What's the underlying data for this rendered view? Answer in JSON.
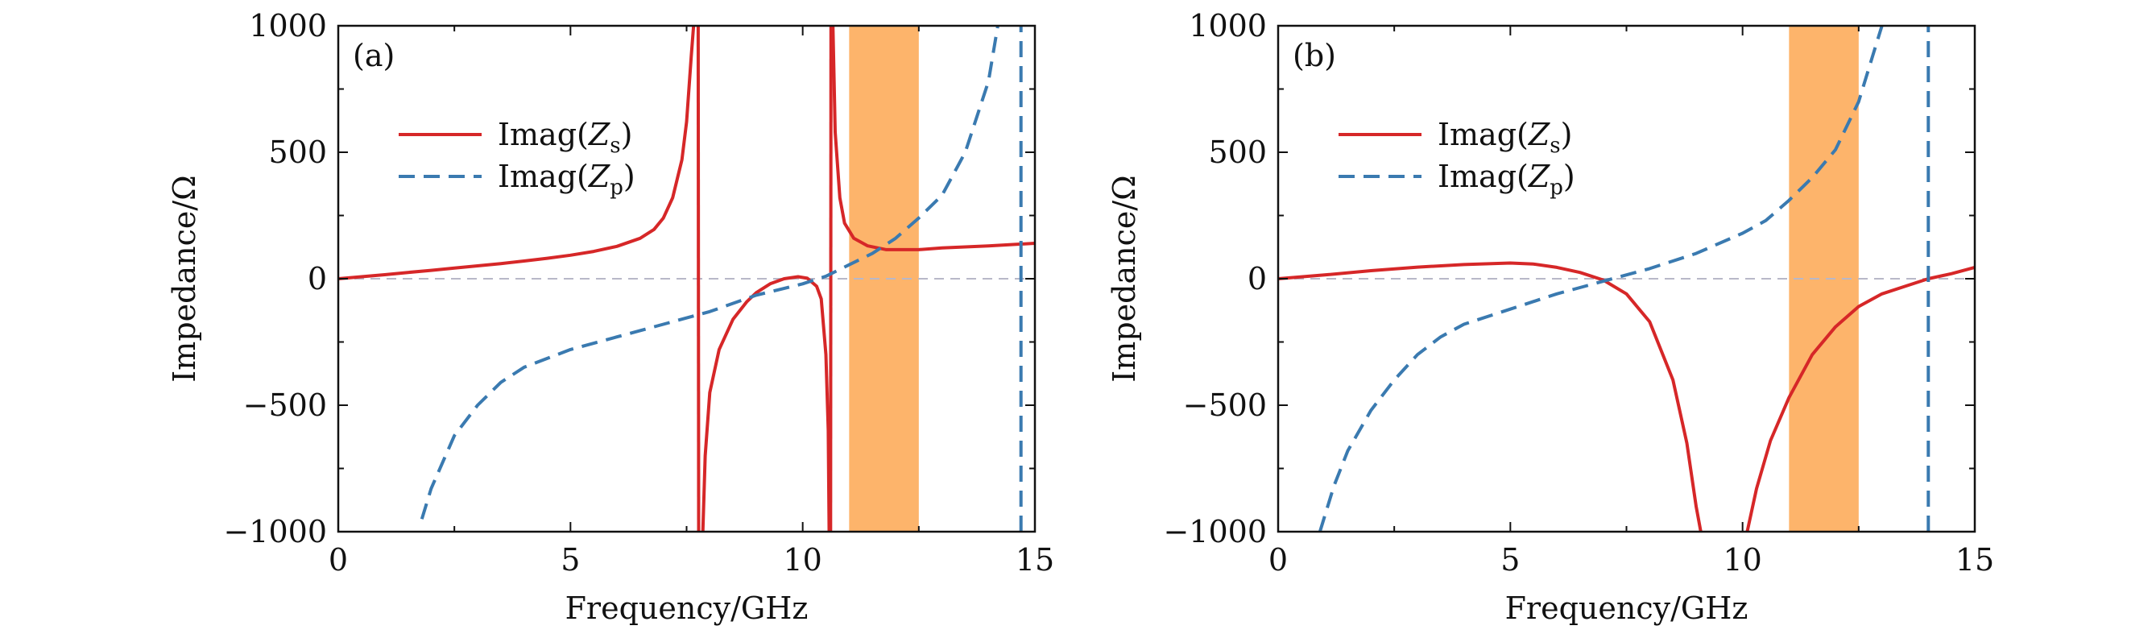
{
  "chart_data": [
    {
      "type": "line",
      "panel_label": "(a)",
      "xlabel": "Frequency/GHz",
      "ylabel": "Impedance/Ω",
      "xlim": [
        0,
        15
      ],
      "ylim": [
        -1000,
        1000
      ],
      "x_ticks": [
        "0",
        "5",
        "10",
        "15"
      ],
      "y_ticks": [
        "1000",
        "500",
        "0",
        "−500",
        "−1000"
      ],
      "shaded_band": {
        "x": [
          11.0,
          12.5
        ],
        "color": "#fdb46b"
      },
      "zero_line": true,
      "legend_position": "upper-left",
      "series": [
        {
          "name": "Imag(Zs)",
          "legend": {
            "pre": "Imag(",
            "var": "Z",
            "sub": "s",
            "post": ")"
          },
          "style": "solid",
          "color": "#d62728",
          "segments": [
            [
              [
                0,
                0
              ],
              [
                0.5,
                8
              ],
              [
                1,
                16
              ],
              [
                1.5,
                25
              ],
              [
                2,
                33
              ],
              [
                2.5,
                42
              ],
              [
                3,
                51
              ],
              [
                3.5,
                60
              ],
              [
                4,
                70
              ],
              [
                4.5,
                81
              ],
              [
                5,
                93
              ],
              [
                5.5,
                108
              ],
              [
                6,
                128
              ],
              [
                6.5,
                160
              ],
              [
                6.8,
                195
              ],
              [
                7,
                240
              ],
              [
                7.2,
                320
              ],
              [
                7.4,
                470
              ],
              [
                7.5,
                620
              ],
              [
                7.6,
                880
              ],
              [
                7.65,
                1000
              ]
            ],
            [
              [
                7.75,
                1000
              ],
              [
                7.76,
                -1000
              ]
            ],
            [
              [
                7.85,
                -1000
              ],
              [
                7.9,
                -700
              ],
              [
                8,
                -450
              ],
              [
                8.2,
                -280
              ],
              [
                8.5,
                -160
              ],
              [
                8.8,
                -90
              ],
              [
                9,
                -55
              ],
              [
                9.3,
                -20
              ],
              [
                9.6,
                0
              ],
              [
                9.9,
                8
              ],
              [
                10.1,
                2
              ],
              [
                10.3,
                -30
              ],
              [
                10.4,
                -80
              ],
              [
                10.5,
                -300
              ],
              [
                10.55,
                -600
              ],
              [
                10.57,
                -1000
              ]
            ],
            [
              [
                10.6,
                -1000
              ],
              [
                10.61,
                1000
              ]
            ],
            [
              [
                10.65,
                1000
              ],
              [
                10.7,
                580
              ],
              [
                10.8,
                320
              ],
              [
                10.9,
                220
              ],
              [
                11.1,
                160
              ],
              [
                11.4,
                130
              ],
              [
                11.8,
                115
              ],
              [
                12.5,
                115
              ],
              [
                13,
                122
              ],
              [
                14,
                130
              ],
              [
                15,
                140
              ]
            ]
          ]
        },
        {
          "name": "Imag(Zp)",
          "legend": {
            "pre": "Imag(",
            "var": "Z",
            "sub": "p",
            "post": ")"
          },
          "style": "dashed",
          "color": "#3a7ab0",
          "segments": [
            [
              [
                1.8,
                -950
              ],
              [
                2,
                -830
              ],
              [
                2.5,
                -620
              ],
              [
                3,
                -500
              ],
              [
                3.5,
                -410
              ],
              [
                4,
                -350
              ],
              [
                5,
                -280
              ],
              [
                6,
                -230
              ],
              [
                7,
                -180
              ],
              [
                8,
                -130
              ],
              [
                9,
                -65
              ],
              [
                10,
                -20
              ],
              [
                10.5,
                10
              ],
              [
                11,
                55
              ],
              [
                11.5,
                100
              ],
              [
                12,
                160
              ],
              [
                12.5,
                240
              ],
              [
                13,
                330
              ],
              [
                13.5,
                500
              ],
              [
                14,
                780
              ],
              [
                14.2,
                1000
              ]
            ],
            [
              [
                14.7,
                -1000
              ],
              [
                14.7,
                1000
              ]
            ]
          ]
        }
      ]
    },
    {
      "type": "line",
      "panel_label": "(b)",
      "xlabel": "Frequency/GHz",
      "ylabel": "Impedance/Ω",
      "xlim": [
        0,
        15
      ],
      "ylim": [
        -1000,
        1000
      ],
      "x_ticks": [
        "0",
        "5",
        "10",
        "15"
      ],
      "y_ticks": [
        "1000",
        "500",
        "0",
        "−500",
        "−1000"
      ],
      "shaded_band": {
        "x": [
          11.0,
          12.5
        ],
        "color": "#fdb46b"
      },
      "zero_line": true,
      "legend_position": "upper-left",
      "series": [
        {
          "name": "Imag(Zs)",
          "legend": {
            "pre": "Imag(",
            "var": "Z",
            "sub": "s",
            "post": ")"
          },
          "style": "solid",
          "color": "#d62728",
          "segments": [
            [
              [
                0,
                0
              ],
              [
                1,
                15
              ],
              [
                2,
                32
              ],
              [
                3,
                46
              ],
              [
                4,
                56
              ],
              [
                5,
                62
              ],
              [
                5.5,
                58
              ],
              [
                6,
                45
              ],
              [
                6.5,
                25
              ],
              [
                7,
                -5
              ],
              [
                7.5,
                -60
              ],
              [
                8,
                -170
              ],
              [
                8.5,
                -400
              ],
              [
                8.8,
                -650
              ],
              [
                9,
                -900
              ],
              [
                9.1,
                -1000
              ]
            ],
            [
              [
                10.1,
                -1000
              ],
              [
                10.3,
                -830
              ],
              [
                10.6,
                -640
              ],
              [
                11,
                -470
              ],
              [
                11.5,
                -300
              ],
              [
                12,
                -190
              ],
              [
                12.5,
                -110
              ],
              [
                13,
                -60
              ],
              [
                13.5,
                -30
              ],
              [
                14,
                0
              ],
              [
                14.5,
                20
              ],
              [
                15,
                45
              ]
            ]
          ]
        },
        {
          "name": "Imag(Zp)",
          "legend": {
            "pre": "Imag(",
            "var": "Z",
            "sub": "p",
            "post": ")"
          },
          "style": "dashed",
          "color": "#3a7ab0",
          "segments": [
            [
              [
                0.9,
                -1000
              ],
              [
                1.2,
                -820
              ],
              [
                1.5,
                -680
              ],
              [
                2,
                -520
              ],
              [
                2.5,
                -400
              ],
              [
                3,
                -300
              ],
              [
                3.5,
                -230
              ],
              [
                4,
                -180
              ],
              [
                5,
                -120
              ],
              [
                6,
                -60
              ],
              [
                7,
                -10
              ],
              [
                8,
                40
              ],
              [
                9,
                100
              ],
              [
                10,
                180
              ],
              [
                10.5,
                230
              ],
              [
                11,
                310
              ],
              [
                11.5,
                400
              ],
              [
                12,
                510
              ],
              [
                12.5,
                700
              ],
              [
                12.8,
                880
              ],
              [
                13,
                1000
              ]
            ],
            [
              [
                14,
                -1000
              ],
              [
                14,
                1000
              ]
            ]
          ]
        }
      ]
    }
  ]
}
